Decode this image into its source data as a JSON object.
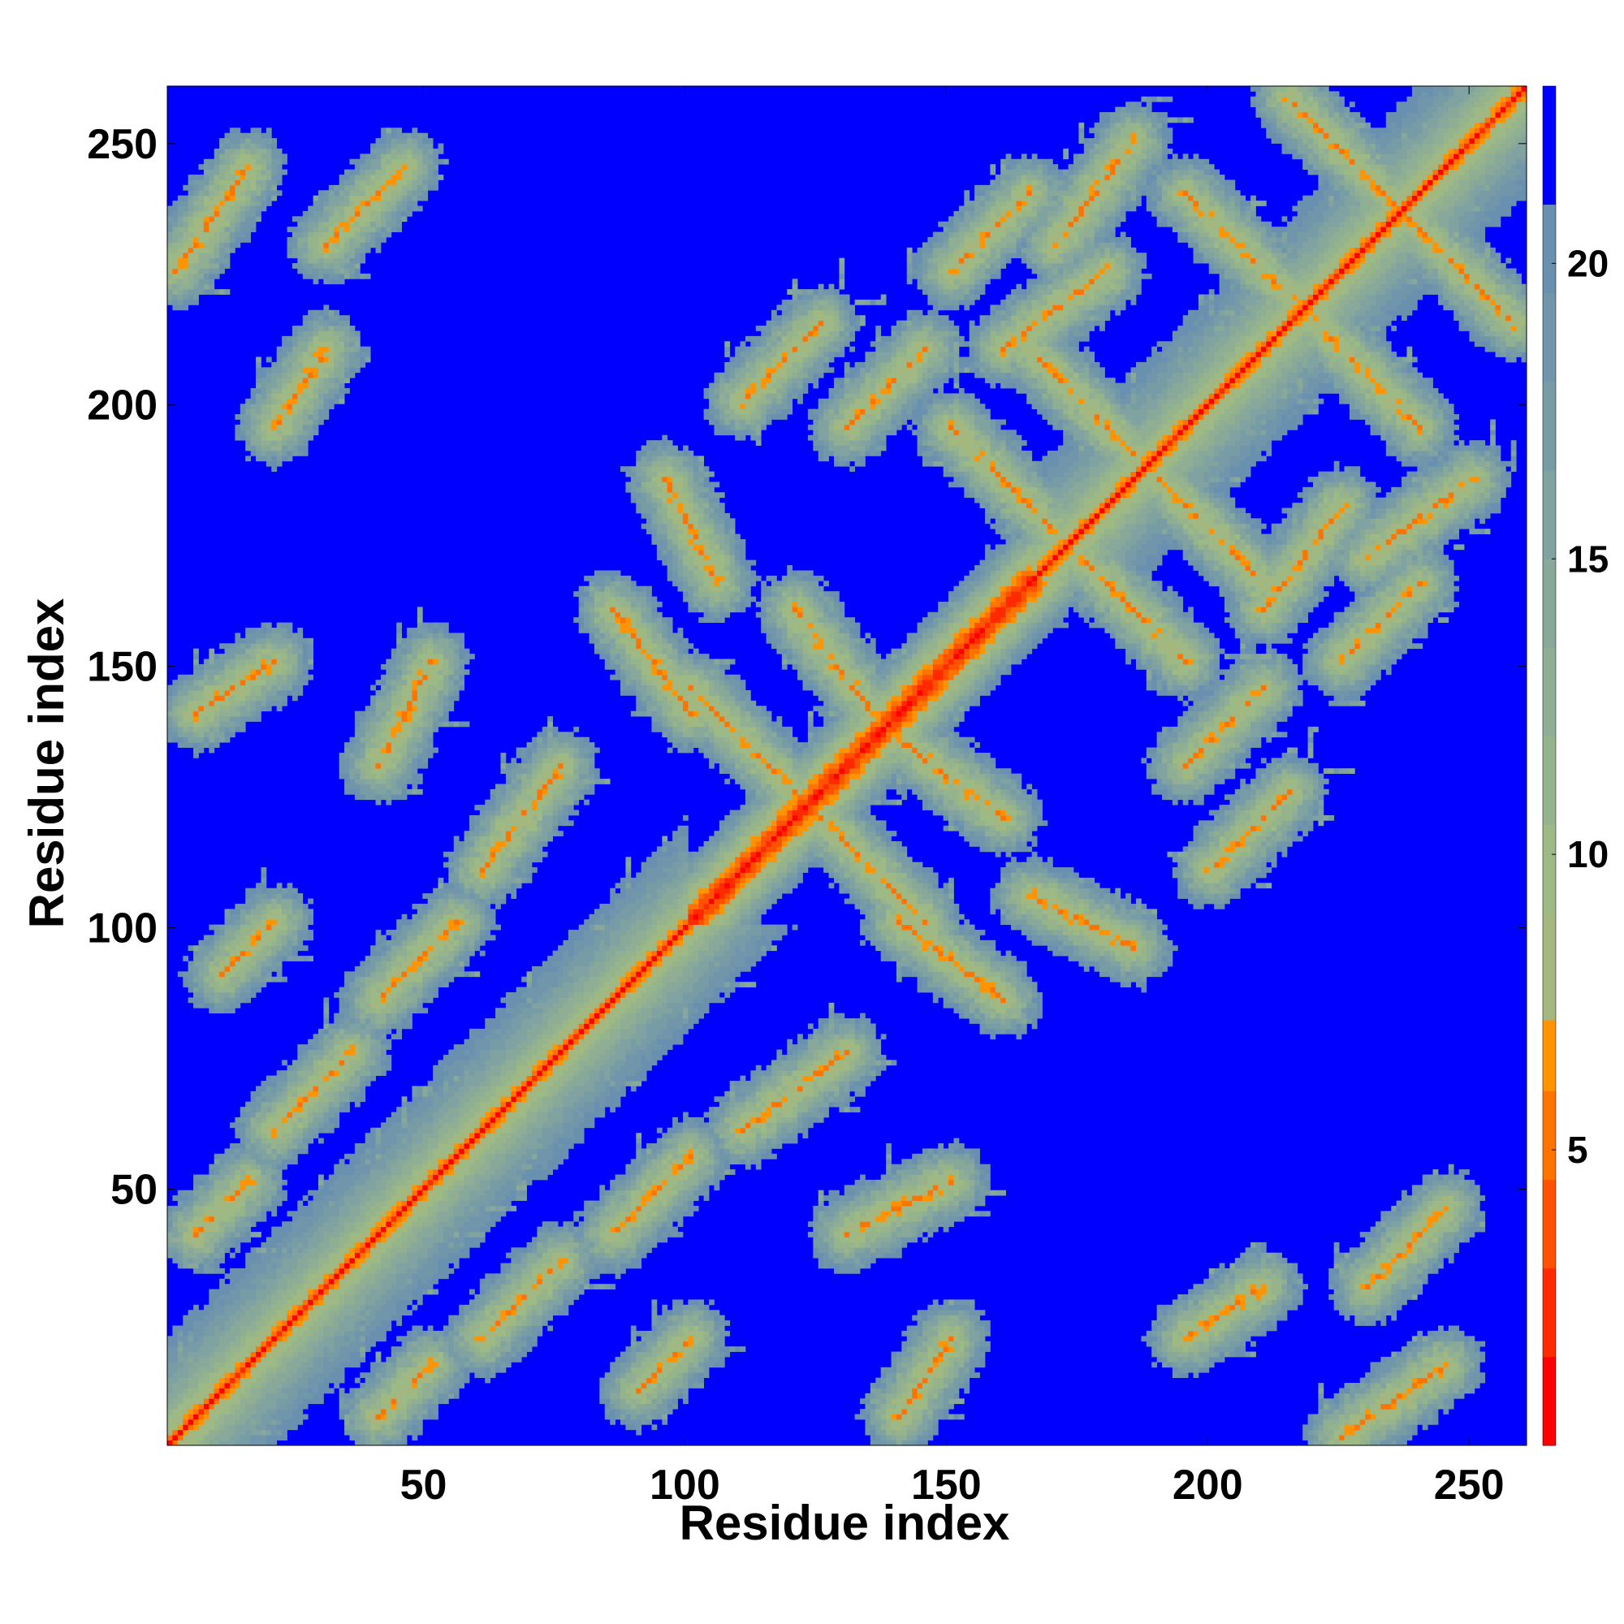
{
  "chart_data": {
    "type": "heatmap",
    "title": "",
    "xlabel": "Residue index",
    "ylabel": "Residue index",
    "n_residues": 261,
    "xlim": [
      1,
      261
    ],
    "ylim": [
      1,
      261
    ],
    "x_ticks": [
      {
        "value": 50,
        "label": "50"
      },
      {
        "value": 100,
        "label": "100"
      },
      {
        "value": 150,
        "label": "150"
      },
      {
        "value": 200,
        "label": "200"
      },
      {
        "value": 250,
        "label": "250"
      }
    ],
    "y_ticks": [
      {
        "value": 50,
        "label": "50"
      },
      {
        "value": 100,
        "label": "100"
      },
      {
        "value": 150,
        "label": "150"
      },
      {
        "value": 200,
        "label": "200"
      },
      {
        "value": 250,
        "label": "250"
      }
    ],
    "colorbar": {
      "range": [
        0,
        23
      ],
      "ticks": [
        {
          "value": 5,
          "label": "5"
        },
        {
          "value": 10,
          "label": "10"
        },
        {
          "value": 15,
          "label": "15"
        },
        {
          "value": 20,
          "label": "20"
        }
      ],
      "bins": [
        {
          "from": 0,
          "to": 1.5,
          "color": "#ff0000"
        },
        {
          "from": 1.5,
          "to": 3,
          "color": "#ff2a00"
        },
        {
          "from": 3,
          "to": 4.5,
          "color": "#ff5200"
        },
        {
          "from": 4.5,
          "to": 6,
          "color": "#ff7400"
        },
        {
          "from": 6,
          "to": 7.2,
          "color": "#ff9400"
        },
        {
          "from": 7.2,
          "to": 9,
          "color": "#a3b77f"
        },
        {
          "from": 9,
          "to": 10.5,
          "color": "#9db985"
        },
        {
          "from": 10.5,
          "to": 12,
          "color": "#96b48c"
        },
        {
          "from": 12,
          "to": 13.5,
          "color": "#8fae93"
        },
        {
          "from": 13.5,
          "to": 15,
          "color": "#88a89a"
        },
        {
          "from": 15,
          "to": 16.5,
          "color": "#80a2a0"
        },
        {
          "from": 16.5,
          "to": 18,
          "color": "#789ca6"
        },
        {
          "from": 18,
          "to": 19.5,
          "color": "#7196ab"
        },
        {
          "from": 19.5,
          "to": 21,
          "color": "#6a90b0"
        },
        {
          "from": 21,
          "to": 23,
          "color": "#0000ff"
        }
      ]
    },
    "background_color": "#0000ff",
    "description_values": "Cα distance map (Å), symmetric about the diagonal; distances below ~7 Å appear red/orange, 7–21 Å appear grey-green/steel-blue, above 21 Å saturate to blue.",
    "features": [
      {
        "kind": "diagonal",
        "from": 1,
        "to": 261
      },
      {
        "kind": "helix_band",
        "from": 100,
        "to": 165
      },
      {
        "kind": "parallel",
        "a": [
          5,
          15
        ],
        "b": [
          40,
          50
        ]
      },
      {
        "kind": "parallel",
        "a": [
          20,
          35
        ],
        "b": [
          60,
          75
        ]
      },
      {
        "kind": "parallel",
        "a": [
          10,
          20
        ],
        "b": [
          90,
          100
        ]
      },
      {
        "kind": "parallel",
        "a": [
          40,
          55
        ],
        "b": [
          85,
          100
        ]
      },
      {
        "kind": "antiparallel",
        "a": [
          100,
          120
        ],
        "b": [
          125,
          145
        ]
      },
      {
        "kind": "antiparallel",
        "a": [
          120,
          135
        ],
        "b": [
          140,
          160
        ]
      },
      {
        "kind": "antiparallel",
        "a": [
          150,
          170
        ],
        "b": [
          175,
          195
        ]
      },
      {
        "kind": "antiparallel",
        "a": [
          165,
          185
        ],
        "b": [
          190,
          210
        ]
      },
      {
        "kind": "antiparallel",
        "a": [
          195,
          215
        ],
        "b": [
          220,
          240
        ]
      },
      {
        "kind": "antiparallel",
        "a": [
          215,
          235
        ],
        "b": [
          238,
          258
        ]
      },
      {
        "kind": "parallel",
        "a": [
          130,
          145
        ],
        "b": [
          195,
          210
        ]
      },
      {
        "kind": "parallel",
        "a": [
          170,
          185
        ],
        "b": [
          230,
          250
        ]
      },
      {
        "kind": "parallel",
        "a": [
          150,
          165
        ],
        "b": [
          225,
          240
        ]
      },
      {
        "kind": "antiparallel",
        "a": [
          85,
          100
        ],
        "b": [
          140,
          160
        ]
      },
      {
        "kind": "antiparallel",
        "a": [
          95,
          105
        ],
        "b": [
          165,
          185
        ]
      },
      {
        "kind": "parallel",
        "a": [
          1,
          15
        ],
        "b": [
          225,
          245
        ]
      },
      {
        "kind": "parallel",
        "a": [
          20,
          30
        ],
        "b": [
          195,
          210
        ]
      },
      {
        "kind": "parallel",
        "a": [
          30,
          45
        ],
        "b": [
          230,
          245
        ]
      },
      {
        "kind": "parallel",
        "a": [
          60,
          75
        ],
        "b": [
          110,
          130
        ]
      },
      {
        "kind": "parallel",
        "a": [
          110,
          125
        ],
        "b": [
          200,
          215
        ]
      },
      {
        "kind": "parallel",
        "a": [
          160,
          180
        ],
        "b": [
          210,
          225
        ]
      },
      {
        "kind": "parallel",
        "a": [
          5,
          20
        ],
        "b": [
          140,
          150
        ]
      },
      {
        "kind": "parallel",
        "a": [
          40,
          50
        ],
        "b": [
          130,
          150
        ]
      }
    ]
  }
}
